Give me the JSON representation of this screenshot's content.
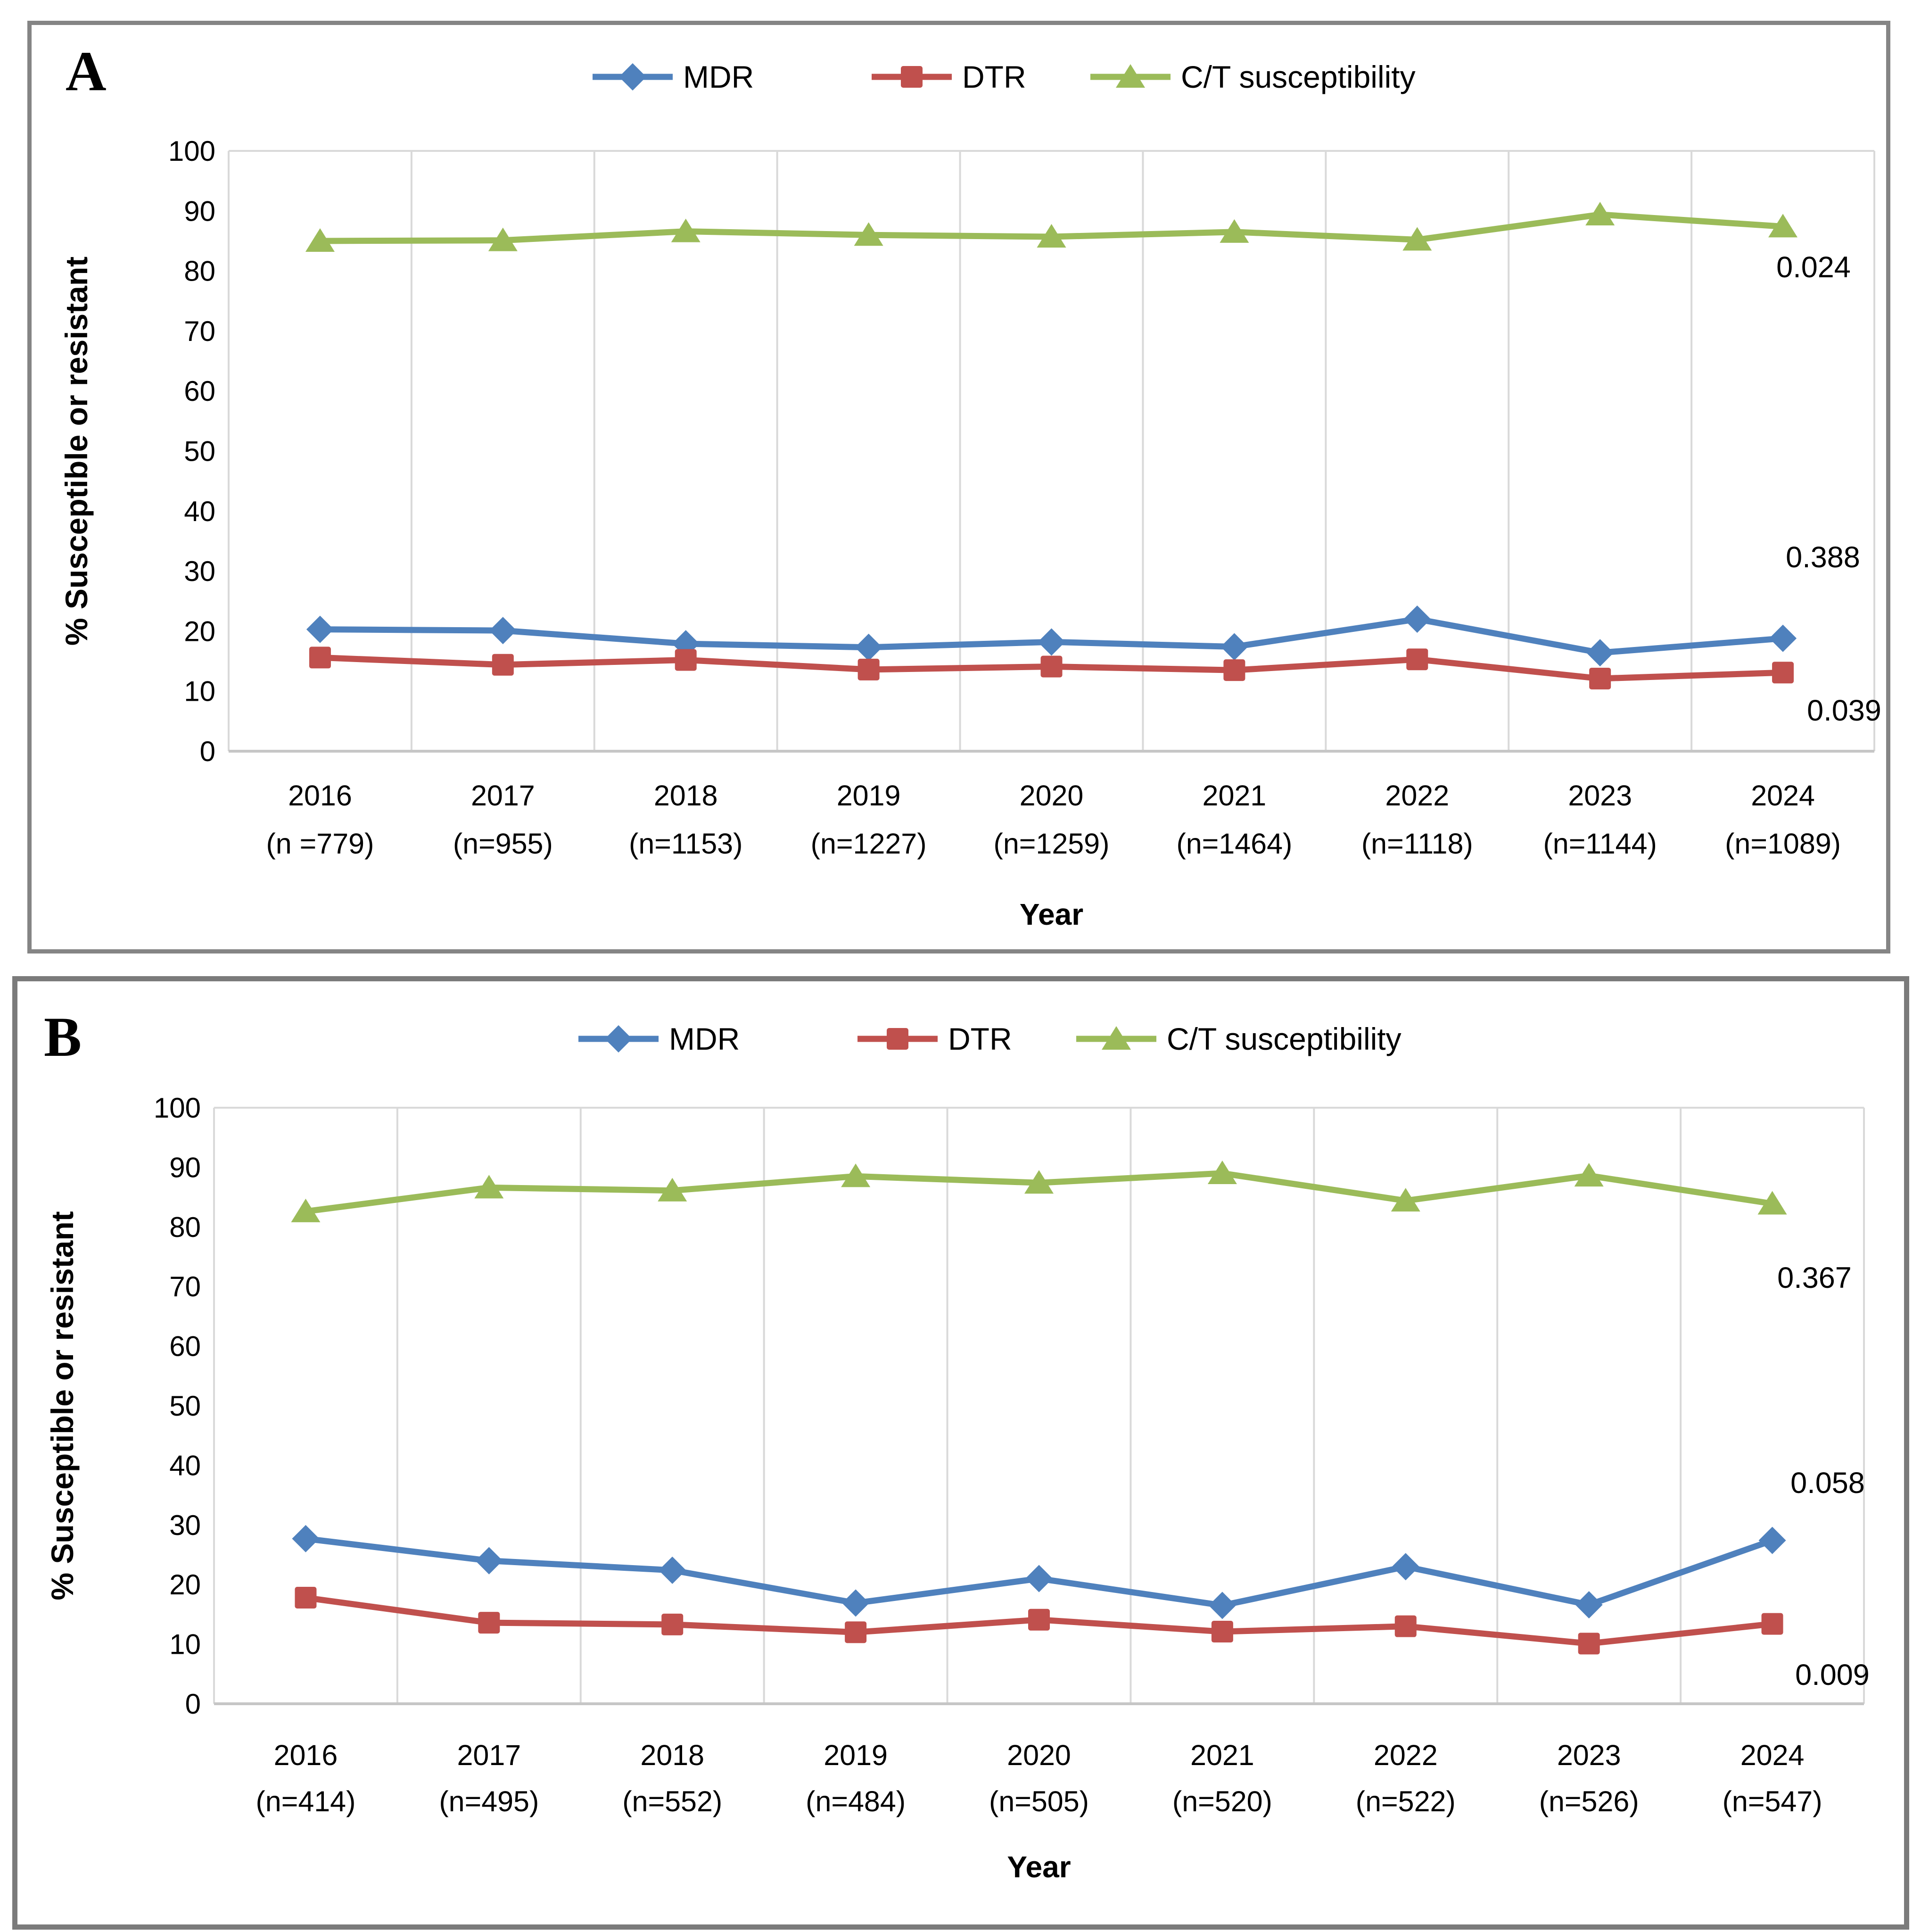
{
  "figure": {
    "background": "#ffffff",
    "panels": [
      {
        "letter": "A"
      },
      {
        "letter": "B"
      }
    ]
  },
  "chart_data": [
    {
      "type": "line",
      "panel": "A",
      "title": "",
      "xlabel": "Year",
      "ylabel": "% Susceptible or resistant",
      "ylim": [
        0,
        100
      ],
      "yticks": [
        0,
        10,
        20,
        30,
        40,
        50,
        60,
        70,
        80,
        90,
        100
      ],
      "grid": "vertical-only",
      "legend_position": "top-center",
      "categories": [
        "2016",
        "2017",
        "2018",
        "2019",
        "2020",
        "2021",
        "2022",
        "2023",
        "2024"
      ],
      "n_labels": [
        "(n =779)",
        "(n=955)",
        "(n=1153)",
        "(n=1227)",
        "(n=1259)",
        "(n=1464)",
        "(n=1118)",
        "(n=1144)",
        "(n=1089)"
      ],
      "series": [
        {
          "name": "MDR",
          "color": "#4F81BD",
          "marker": "diamond",
          "values": [
            20.3,
            20.1,
            17.9,
            17.3,
            18.2,
            17.4,
            22.0,
            16.4,
            18.8
          ],
          "p_value": "0.388"
        },
        {
          "name": "DTR",
          "color": "#C0504D",
          "marker": "square",
          "values": [
            15.6,
            14.4,
            15.2,
            13.6,
            14.1,
            13.5,
            15.3,
            12.1,
            13.1
          ],
          "p_value": "0.039"
        },
        {
          "name": "C/T susceptibility",
          "color": "#9BBB59",
          "marker": "triangle",
          "values": [
            85.0,
            85.1,
            86.6,
            86.0,
            85.7,
            86.5,
            85.2,
            89.4,
            87.4
          ],
          "p_value": "0.024"
        }
      ],
      "annotations": [
        {
          "text": "0.024",
          "series": "C/T susceptibility",
          "x": 3780,
          "y": 535
        },
        {
          "text": "0.388",
          "series": "MDR",
          "x": 3800,
          "y": 1150
        },
        {
          "text": "0.039",
          "series": "DTR",
          "x": 3845,
          "y": 1475
        }
      ]
    },
    {
      "type": "line",
      "panel": "B",
      "title": "",
      "xlabel": "Year",
      "ylabel": "% Susceptible or resistant",
      "ylim": [
        0,
        100
      ],
      "yticks": [
        0,
        10,
        20,
        30,
        40,
        50,
        60,
        70,
        80,
        90,
        100
      ],
      "grid": "vertical-only",
      "legend_position": "top-center",
      "categories": [
        "2016",
        "2017",
        "2018",
        "2019",
        "2020",
        "2021",
        "2022",
        "2023",
        "2024"
      ],
      "n_labels": [
        "(n=414)",
        "(n=495)",
        "(n=552)",
        "(n=484)",
        "(n=505)",
        "(n=520)",
        "(n=522)",
        "(n=526)",
        "(n=547)"
      ],
      "series": [
        {
          "name": "MDR",
          "color": "#4F81BD",
          "marker": "diamond",
          "values": [
            27.7,
            24.0,
            22.4,
            16.9,
            21.0,
            16.5,
            23.0,
            16.6,
            27.4
          ],
          "p_value": "0.058"
        },
        {
          "name": "DTR",
          "color": "#C0504D",
          "marker": "square",
          "values": [
            17.8,
            13.6,
            13.3,
            12.0,
            14.1,
            12.1,
            13.0,
            10.1,
            13.4
          ],
          "p_value": "0.009"
        },
        {
          "name": "C/T susceptibility",
          "color": "#9BBB59",
          "marker": "triangle",
          "values": [
            82.6,
            86.6,
            86.1,
            88.5,
            87.4,
            89.0,
            84.4,
            88.6,
            83.9
          ],
          "p_value": "0.367"
        }
      ],
      "annotations": [
        {
          "text": "0.367",
          "series": "C/T susceptibility",
          "x": 3812,
          "y": 650
        },
        {
          "text": "0.058",
          "series": "MDR",
          "x": 3840,
          "y": 1085
        },
        {
          "text": "0.009",
          "series": "DTR",
          "x": 3850,
          "y": 1492
        }
      ]
    }
  ],
  "style": {
    "grid_color": "#D9D9D9",
    "axis_color": "#C6C6C6",
    "text_color": "#000000"
  }
}
